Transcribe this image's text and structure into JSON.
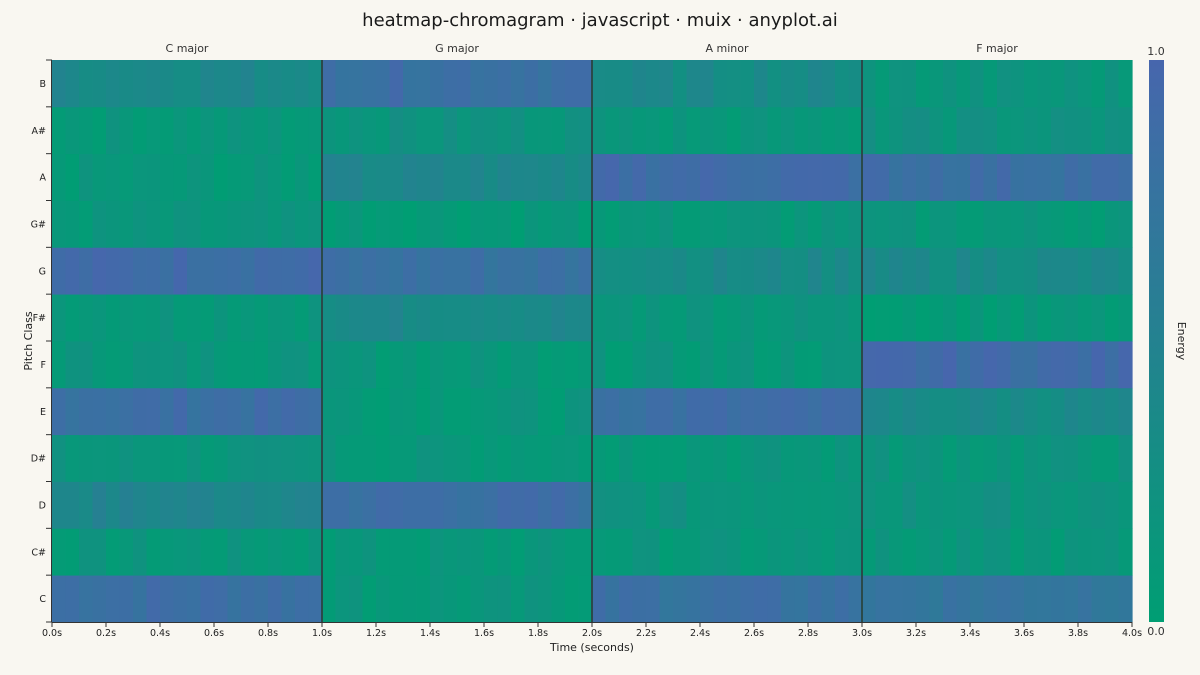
{
  "chart_data": {
    "type": "heatmap",
    "title": "heatmap-chromagram · javascript · muix · anyplot.ai",
    "xlabel": "Time (seconds)",
    "ylabel": "Pitch Class",
    "colorbar_label": "Energy",
    "colorbar_range": [
      0.0,
      1.0
    ],
    "colorbar_ticks": [
      "0.0",
      "1.0"
    ],
    "xlim": [
      0,
      4
    ],
    "x_ticks": [
      "0.0s",
      "0.2s",
      "0.4s",
      "0.6s",
      "0.8s",
      "1.0s",
      "1.2s",
      "1.4s",
      "1.6s",
      "1.8s",
      "2.0s",
      "2.2s",
      "2.4s",
      "2.6s",
      "2.8s",
      "3.0s",
      "3.2s",
      "3.4s",
      "3.6s",
      "3.8s",
      "4.0s"
    ],
    "pitch_classes": [
      "C",
      "C#",
      "D",
      "D#",
      "E",
      "F",
      "F#",
      "G",
      "G#",
      "A",
      "A#",
      "B"
    ],
    "frames_per_segment": 20,
    "segments": [
      {
        "label": "C major",
        "start": 0.0,
        "end": 1.0,
        "energy": {
          "C": 0.85,
          "C#": 0.12,
          "D": 0.45,
          "D#": 0.15,
          "E": 0.85,
          "F": 0.15,
          "F#": 0.15,
          "G": 0.9,
          "G#": 0.12,
          "A": 0.1,
          "A#": 0.12,
          "B": 0.4
        }
      },
      {
        "label": "G major",
        "start": 1.0,
        "end": 2.0,
        "energy": {
          "C": 0.12,
          "C#": 0.1,
          "D": 0.85,
          "D#": 0.12,
          "E": 0.12,
          "F": 0.12,
          "F#": 0.4,
          "G": 0.8,
          "G#": 0.1,
          "A": 0.4,
          "A#": 0.2,
          "B": 0.85
        }
      },
      {
        "label": "A minor",
        "start": 2.0,
        "end": 3.0,
        "energy": {
          "C": 0.8,
          "C#": 0.12,
          "D": 0.18,
          "D#": 0.12,
          "E": 0.85,
          "F": 0.12,
          "F#": 0.15,
          "G": 0.35,
          "G#": 0.12,
          "A": 0.9,
          "A#": 0.12,
          "B": 0.35
        }
      },
      {
        "label": "F major",
        "start": 3.0,
        "end": 4.0,
        "energy": {
          "C": 0.75,
          "C#": 0.12,
          "D": 0.2,
          "D#": 0.15,
          "E": 0.35,
          "F": 0.9,
          "F#": 0.08,
          "G": 0.35,
          "G#": 0.12,
          "A": 0.85,
          "A#": 0.2,
          "B": 0.15
        }
      }
    ],
    "colors": {
      "low": "#009e73",
      "high": "#4766ad",
      "divider": "#2a4a4a"
    }
  }
}
